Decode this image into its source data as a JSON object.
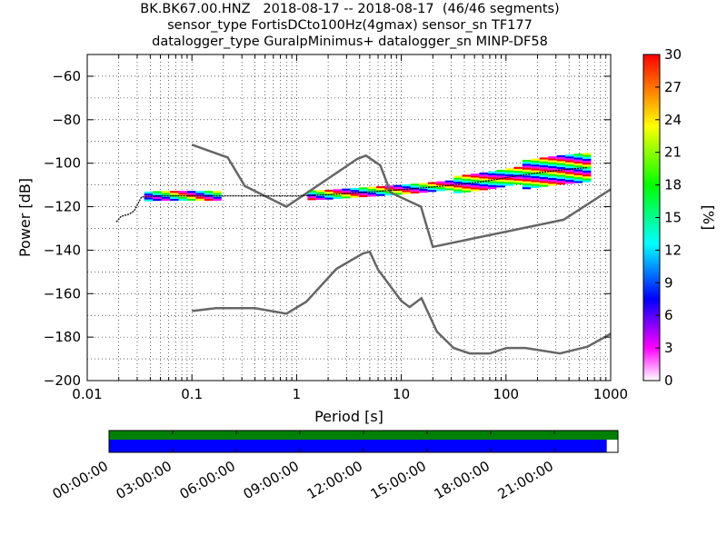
{
  "title": {
    "line1": "BK.BK67.00.HNZ   2018-08-17 -- 2018-08-17  (46/46 segments)",
    "line2": "sensor_type FortisDCto100Hz(4gmax) sensor_sn TF177",
    "line3": "datalogger_type GuralpMinimus+ datalogger_sn MINP-DF58"
  },
  "chart_data": [
    {
      "type": "heatmap",
      "xlabel": "Period [s]",
      "ylabel": "Power [dB]",
      "xscale": "log",
      "xlim": [
        0.01,
        1000
      ],
      "ylim": [
        -200,
        -50
      ],
      "x_ticks": [
        {
          "value": 0.01,
          "label": "0.01"
        },
        {
          "value": 0.1,
          "label": "0.1"
        },
        {
          "value": 1,
          "label": "1"
        },
        {
          "value": 10,
          "label": "10"
        },
        {
          "value": 100,
          "label": "100"
        },
        {
          "value": 1000,
          "label": "1000"
        }
      ],
      "y_ticks": [
        {
          "value": -60,
          "label": "−60"
        },
        {
          "value": -80,
          "label": "−80"
        },
        {
          "value": -100,
          "label": "−100"
        },
        {
          "value": -120,
          "label": "−120"
        },
        {
          "value": -140,
          "label": "−140"
        },
        {
          "value": -160,
          "label": "−160"
        },
        {
          "value": -180,
          "label": "−180"
        },
        {
          "value": -200,
          "label": "−200"
        }
      ],
      "grid": "dotted",
      "colorbar": {
        "label": "[%]",
        "range": [
          0,
          30
        ],
        "ticks": [
          "0",
          "3",
          "6",
          "9",
          "12",
          "15",
          "18",
          "21",
          "24",
          "27",
          "30"
        ],
        "colormap": [
          "#ffffff",
          "#ff00ff",
          "#0000ff",
          "#00ffff",
          "#00ff00",
          "#ffff00",
          "#ff0000"
        ]
      },
      "noise_models": [
        {
          "points": [
            [
              0.1,
              -91.5
            ],
            [
              0.22,
              -97.4
            ],
            [
              0.32,
              -110.5
            ],
            [
              0.8,
              -120
            ],
            [
              3.8,
              -98
            ],
            [
              4.6,
              -96.5
            ],
            [
              6.3,
              -101
            ],
            [
              7.9,
              -113.5
            ],
            [
              15.4,
              -120
            ],
            [
              20,
              -138.5
            ],
            [
              354.8,
              -126
            ],
            [
              1000,
              -112
            ]
          ]
        },
        {
          "points": [
            [
              0.1,
              -168
            ],
            [
              0.17,
              -166.7
            ],
            [
              0.4,
              -166.7
            ],
            [
              0.8,
              -169.2
            ],
            [
              1.24,
              -163.7
            ],
            [
              2.4,
              -148.6
            ],
            [
              4.3,
              -141.5
            ],
            [
              5,
              -140.7
            ],
            [
              6,
              -149
            ],
            [
              10,
              -163.3
            ],
            [
              12,
              -166.2
            ],
            [
              15.6,
              -162.1
            ],
            [
              21.9,
              -177.5
            ],
            [
              31.6,
              -185
            ],
            [
              45,
              -187.5
            ],
            [
              70,
              -187.5
            ],
            [
              101,
              -185
            ],
            [
              154,
              -185
            ],
            [
              328,
              -187.5
            ],
            [
              600,
              -184.4
            ],
            [
              1000,
              -178.5
            ]
          ]
        }
      ],
      "mode_line": {
        "color": "#000000",
        "points": [
          [
            0.019,
            -127
          ],
          [
            0.021,
            -124.5
          ],
          [
            0.025,
            -123.5
          ],
          [
            0.028,
            -122
          ],
          [
            0.033,
            -115.5
          ],
          [
            0.05,
            -115
          ],
          [
            0.2,
            -115
          ],
          [
            1,
            -115
          ],
          [
            2,
            -114.5
          ],
          [
            4,
            -113.5
          ],
          [
            8,
            -112.5
          ],
          [
            15,
            -111.5
          ],
          [
            25,
            -110.5
          ],
          [
            40,
            -109.5
          ],
          [
            70,
            -108
          ],
          [
            120,
            -106
          ],
          [
            200,
            -104.5
          ],
          [
            350,
            -103
          ],
          [
            600,
            -102
          ]
        ]
      }
    },
    {
      "type": "bar",
      "name": "data availability timeline",
      "x_ticks": [
        "00:00:00",
        "03:00:00",
        "06:00:00",
        "09:00:00",
        "12:00:00",
        "15:00:00",
        "18:00:00",
        "21:00:00"
      ],
      "tracks": [
        {
          "color": "#008000",
          "coverage": [
            0,
            1
          ]
        },
        {
          "color": "#0000ff",
          "coverage": [
            0,
            0.978
          ]
        }
      ]
    }
  ]
}
